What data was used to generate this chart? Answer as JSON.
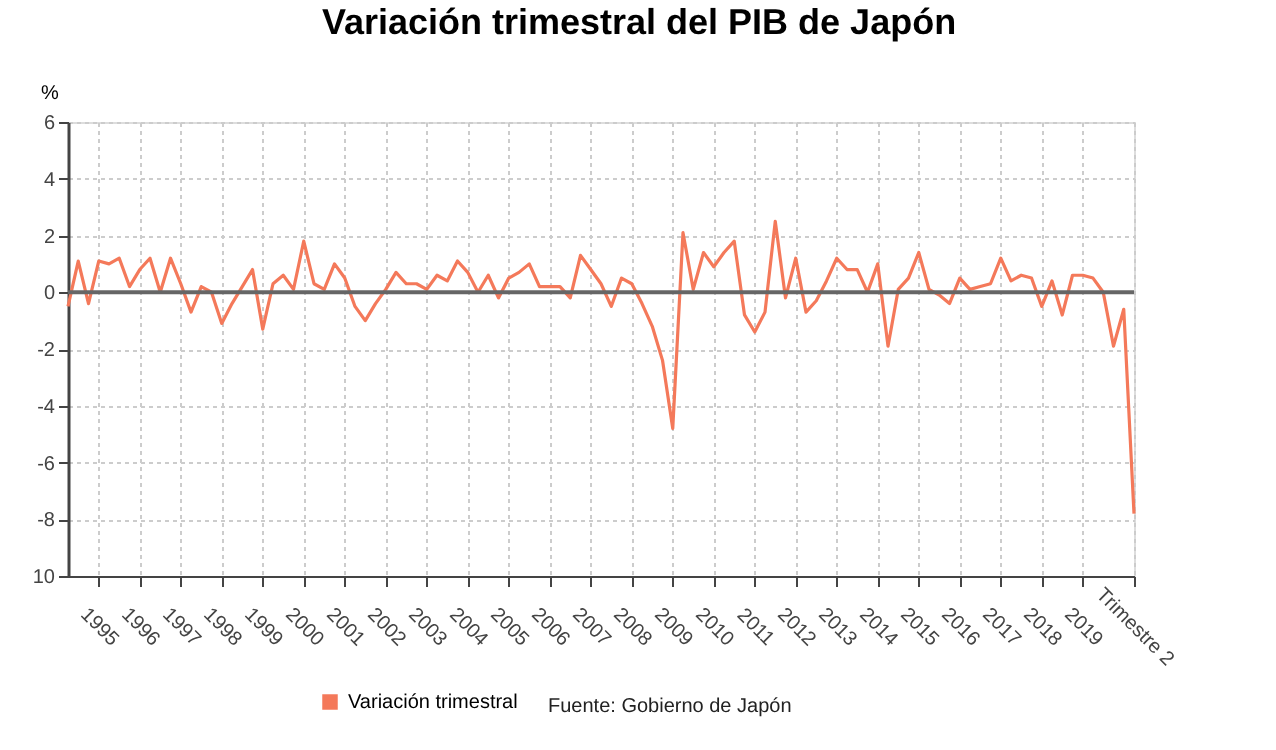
{
  "chart_data": {
    "type": "line",
    "title": "Variación trimestral del PIB de Japón",
    "ylabel": "%",
    "categories": [
      null,
      null,
      null,
      "1995",
      null,
      null,
      null,
      "1996",
      null,
      null,
      null,
      "1997",
      null,
      null,
      null,
      "1998",
      null,
      null,
      null,
      "1999",
      null,
      null,
      null,
      "2000",
      null,
      null,
      null,
      "2001",
      null,
      null,
      null,
      "2002",
      null,
      null,
      null,
      "2003",
      null,
      null,
      null,
      "2004",
      null,
      null,
      null,
      "2005",
      null,
      null,
      null,
      "2006",
      null,
      null,
      null,
      "2007",
      null,
      null,
      null,
      "2008",
      null,
      null,
      null,
      "2009",
      null,
      null,
      null,
      "2010",
      null,
      null,
      null,
      "2011",
      null,
      null,
      null,
      "2012",
      null,
      null,
      null,
      "2013",
      null,
      null,
      null,
      "2014",
      null,
      null,
      null,
      "2015",
      null,
      null,
      null,
      "2016",
      null,
      null,
      null,
      "2017",
      null,
      null,
      null,
      "2018",
      null,
      null,
      null,
      "2019",
      null,
      null,
      null,
      null,
      "Trimestre 2"
    ],
    "series": [
      {
        "name": "Variación trimestral",
        "color": "#f4795a",
        "values": [
          -0.5,
          1.1,
          -0.4,
          1.1,
          1.0,
          1.2,
          0.2,
          0.8,
          1.2,
          0.0,
          1.2,
          0.3,
          -0.7,
          0.2,
          0.0,
          -1.1,
          -0.4,
          0.2,
          0.8,
          -1.3,
          0.3,
          0.6,
          0.1,
          1.8,
          0.3,
          0.1,
          1.0,
          0.5,
          -0.5,
          -1.0,
          -0.4,
          0.1,
          0.7,
          0.3,
          0.3,
          0.1,
          0.6,
          0.4,
          1.1,
          0.7,
          0.0,
          0.6,
          -0.2,
          0.5,
          0.7,
          1.0,
          0.2,
          0.2,
          0.2,
          -0.2,
          1.3,
          0.8,
          0.3,
          -0.5,
          0.5,
          0.3,
          -0.4,
          -1.2,
          -2.4,
          -4.8,
          2.1,
          0.1,
          1.4,
          0.9,
          1.4,
          1.8,
          -0.8,
          -1.4,
          -0.7,
          2.5,
          -0.2,
          1.2,
          -0.7,
          -0.3,
          0.4,
          1.2,
          0.8,
          0.8,
          0.0,
          1.0,
          -1.9,
          0.1,
          0.5,
          1.4,
          0.1,
          -0.1,
          -0.4,
          0.5,
          0.1,
          0.2,
          0.3,
          1.2,
          0.4,
          0.6,
          0.5,
          -0.5,
          0.4,
          -0.8,
          0.6,
          0.6,
          0.5,
          0.0,
          -1.9,
          -0.6,
          -7.8
        ]
      }
    ],
    "ylim": [
      -10,
      6
    ],
    "yticks": [
      {
        "value": -10,
        "label": "10"
      },
      -8,
      -6,
      -4,
      -2,
      0,
      2,
      4,
      6
    ],
    "ref_lines": [
      {
        "axis": "y",
        "value": 0,
        "color": "#666666"
      }
    ],
    "grid": true,
    "legend": "bottom",
    "annotations": [
      "Fuente: Gobierno de Japón"
    ]
  }
}
